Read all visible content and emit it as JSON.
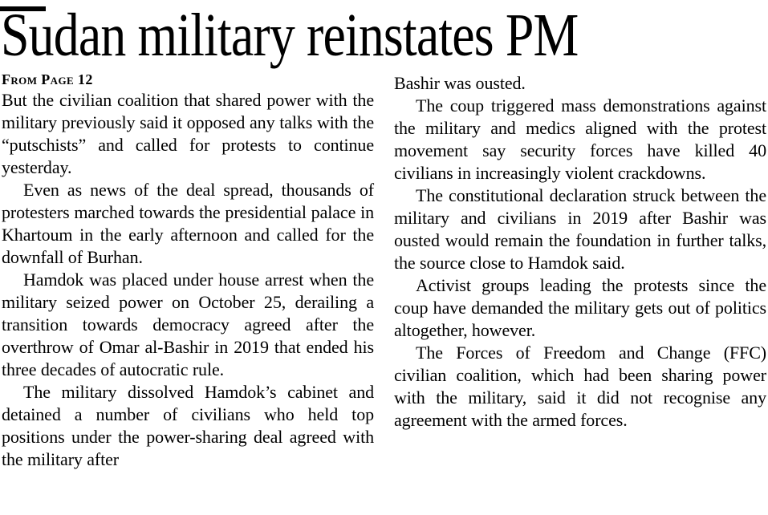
{
  "article": {
    "headline": "Sudan military reinstates PM",
    "kicker": "From Page 12",
    "text_color": "#000000",
    "background_color": "#ffffff",
    "columns": [
      {
        "blocks": [
          {
            "text": "But the civilian coalition that shared power with the military previously said it opposed any talks with the “putschists” and called for protests to continue yesterday."
          },
          {
            "text": "Even as news of the deal spread, thousands of protesters marched towards the presidential palace in Khartoum in the early afternoon and called for the downfall of Burhan."
          },
          {
            "text": "Hamdok was placed under house arrest when the military seized power on October 25, derailing a transition towards democracy agreed after the overthrow of Omar al-Bashir in 2019 that ended his three decades of autocratic rule."
          },
          {
            "text": "The military dissolved Hamdok’s cabinet and detained a number of civilians who held top positions under the power-sharing deal agreed with the military after"
          }
        ]
      },
      {
        "blocks": [
          {
            "text": "Bashir was ousted."
          },
          {
            "text": "The coup triggered mass demonstrations against the military and medics aligned with the protest movement say security forces have killed 40 civilians in increasingly violent crackdowns."
          },
          {
            "text": "The constitutional declaration struck between the military and civilians in 2019 after Bashir was ousted would remain the foundation in further talks, the source close to Hamdok said."
          },
          {
            "text": "Activist groups leading the protests since the coup have demanded the military gets out of politics altogether, however."
          },
          {
            "text": "The Forces of Freedom and Change (FFC) civilian coalition, which had been sharing power with the military, said it did not recognise any agreement with the armed forces."
          }
        ]
      }
    ]
  }
}
